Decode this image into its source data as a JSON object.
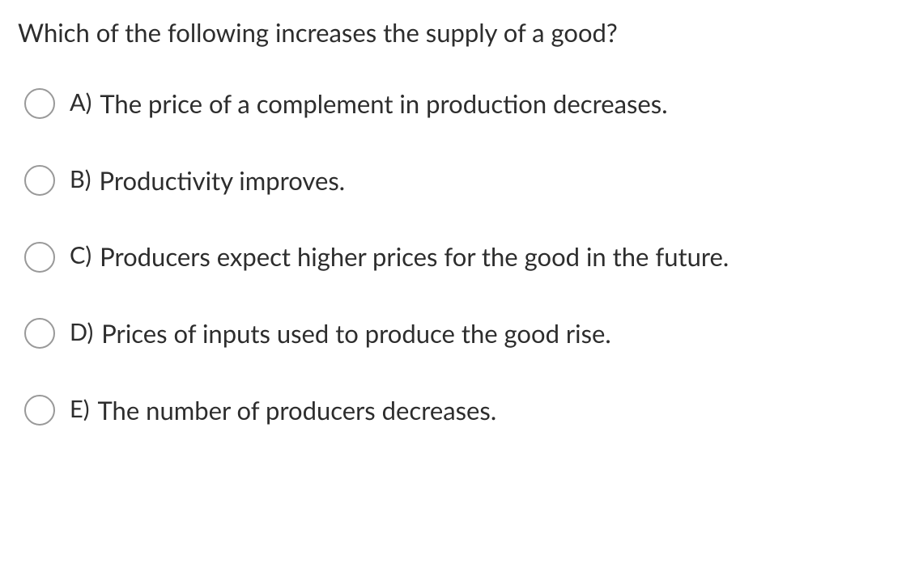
{
  "question": {
    "text": "Which of the following increases the supply of a good?"
  },
  "options": [
    {
      "letter": "A)",
      "text": "The price of a complement in production decreases."
    },
    {
      "letter": "B)",
      "text": "Productivity improves."
    },
    {
      "letter": "C)",
      "text": "Producers expect higher prices for the good in the future."
    },
    {
      "letter": "D)",
      "text": "Prices of inputs used to produce the good rise."
    },
    {
      "letter": "E)",
      "text": "The number of producers decreases."
    }
  ],
  "colors": {
    "text": "#2d2d2d",
    "radio_border": "#999999",
    "background": "#ffffff"
  },
  "typography": {
    "question_fontsize": 31,
    "option_fontsize": 31,
    "letter_fontsize": 29
  }
}
